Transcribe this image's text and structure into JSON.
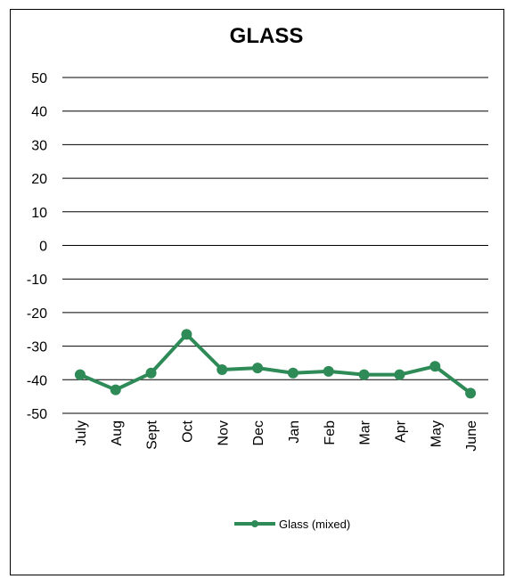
{
  "chart_data": {
    "type": "line",
    "title": "GLASS",
    "xlabel": "",
    "ylabel": "",
    "ylim": [
      -50,
      50
    ],
    "yticks": [
      "50",
      "40",
      "30",
      "20",
      "10",
      "0",
      "-10",
      "-20",
      "-30",
      "-40",
      "-50"
    ],
    "categories": [
      "July",
      "Aug",
      "Sept",
      "Oct",
      "Nov",
      "Dec",
      "Jan",
      "Feb",
      "Mar",
      "Apr",
      "May",
      "June"
    ],
    "grid": true,
    "legend_position": "bottom",
    "series": [
      {
        "name": "Glass (mixed)",
        "color": "#2e8b57",
        "values": [
          -38.5,
          -43,
          -38,
          -26.5,
          -37,
          -36.5,
          -38,
          -37.5,
          -38.5,
          -38.5,
          -36,
          -44
        ]
      }
    ]
  }
}
